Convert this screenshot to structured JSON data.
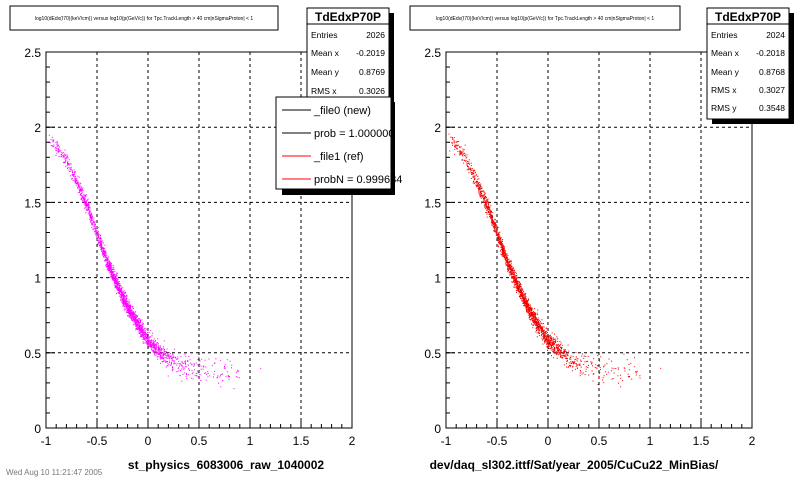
{
  "colors": {
    "frame": "#000000",
    "grid": "#000000",
    "left_points": "#ff00ff",
    "right_points": "#ff0000",
    "right_dark_points": "#990000",
    "shadow": "#000000",
    "legend_new": "#000000",
    "legend_ref": "#ff0000"
  },
  "chart_data": [
    {
      "type": "scatter",
      "title": "log10(dEdx(I70)(keV/cm)) versus log10(p(GeV/c)) for Tpc.TrackLength > 40 cm|nSigmaProton| < 1",
      "xlabel": "st_physics_6083006_raw_1040002",
      "ylabel": "",
      "xlim": [
        -1,
        2
      ],
      "ylim": [
        0,
        2.5
      ],
      "x_ticks": [
        "-1",
        "-0.5",
        "0",
        "0.5",
        "1",
        "1.5",
        "2"
      ],
      "y_ticks": [
        "0",
        "0.5",
        "1",
        "1.5",
        "2",
        "2.5"
      ],
      "grid": true,
      "stats": {
        "name": "TdEdxP70P",
        "rows": [
          {
            "label": "Entries",
            "value": "2026"
          },
          {
            "label": "Mean x",
            "value": "-0.2019"
          },
          {
            "label": "Mean y",
            "value": "0.8769"
          },
          {
            "label": "RMS x",
            "value": "0.3026"
          }
        ]
      },
      "legend": [
        {
          "label": "_file0 (new)",
          "color": "#000000"
        },
        {
          "label": "prob = 1.000000",
          "color": "#000000"
        },
        {
          "label": "_file1 (ref)",
          "color": "#ff0000"
        },
        {
          "label": "probN = 0.999684",
          "color": "#ff0000"
        }
      ],
      "series": [
        {
          "color": "#ff00ff",
          "count": 2026
        }
      ]
    },
    {
      "type": "scatter",
      "title": "log10(dEdx(I70)(keV/cm)) versus log10(p(GeV/c)) for Tpc.TrackLength > 40 cm|nSigmaProton| < 1",
      "xlabel": "dev/daq_sl302.ittf/Sat/year_2005/CuCu22_MinBias/",
      "ylabel": "",
      "xlim": [
        -1,
        2
      ],
      "ylim": [
        0,
        2.5
      ],
      "x_ticks": [
        "-1",
        "-0.5",
        "0",
        "0.5",
        "1",
        "1.5",
        "2"
      ],
      "y_ticks": [
        "0",
        "0.5",
        "1",
        "1.5",
        "2",
        "2.5"
      ],
      "grid": true,
      "stats": {
        "name": "TdEdxP70P",
        "rows": [
          {
            "label": "Entries",
            "value": "2024"
          },
          {
            "label": "Mean x",
            "value": "-0.2018"
          },
          {
            "label": "Mean y",
            "value": "0.8768"
          },
          {
            "label": "RMS x",
            "value": "0.3027"
          },
          {
            "label": "RMS y",
            "value": "0.3548"
          }
        ]
      },
      "series": [
        {
          "color": "#ff0000",
          "count": 2024
        }
      ]
    }
  ],
  "footer_text": "Wed Aug 10 11:21:47 2005"
}
